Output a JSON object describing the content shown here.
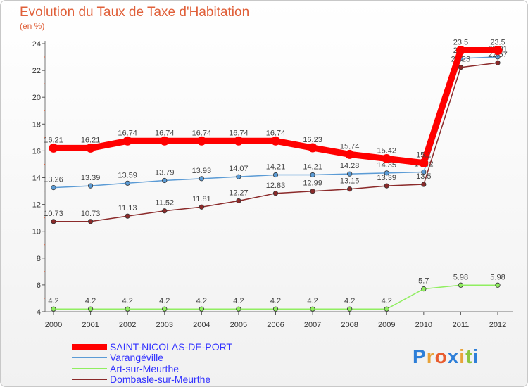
{
  "chart_data": {
    "type": "line",
    "title": "Evolution du Taux de Taxe d'Habitation",
    "ylabel": "(en %)",
    "xlabel": "",
    "ylim": [
      4,
      24
    ],
    "yticks": [
      4,
      6,
      8,
      10,
      12,
      14,
      16,
      18,
      20,
      22,
      24
    ],
    "categories": [
      "2000",
      "2001",
      "2002",
      "2003",
      "2004",
      "2005",
      "2006",
      "2007",
      "2008",
      "2009",
      "2010",
      "2011",
      "2012"
    ],
    "series": [
      {
        "name": "SAINT-NICOLAS-DE-PORT",
        "color": "#ff0000",
        "values": [
          16.21,
          16.21,
          16.74,
          16.74,
          16.74,
          16.74,
          16.74,
          16.23,
          15.74,
          15.42,
          15.1,
          23.5,
          23.5
        ],
        "labels": [
          "16.21",
          "16.21",
          "16.74",
          "16.74",
          "16.74",
          "16.74",
          "16.74",
          "16.23",
          "15.74",
          "15.42",
          "15.1",
          "23.5",
          "23.5"
        ]
      },
      {
        "name": "Varangéville",
        "color": "#5b9bd5",
        "values": [
          13.26,
          13.39,
          13.59,
          13.79,
          13.93,
          14.07,
          14.21,
          14.21,
          14.28,
          14.35,
          14.42,
          22.9,
          23.01
        ],
        "labels": [
          "13.26",
          "13.39",
          "13.59",
          "13.79",
          "13.93",
          "14.07",
          "14.21",
          "14.21",
          "14.28",
          "14.35",
          "14.42",
          "22.9",
          "23.01"
        ]
      },
      {
        "name": "Art-sur-Meurthe",
        "color": "#90ee60",
        "values": [
          4.2,
          4.2,
          4.2,
          4.2,
          4.2,
          4.2,
          4.2,
          4.2,
          4.2,
          4.2,
          5.7,
          5.98,
          5.98
        ],
        "labels": [
          "4.2",
          "4.2",
          "4.2",
          "4.2",
          "4.2",
          "4.2",
          "4.2",
          "4.2",
          "4.2",
          "4.2",
          "5.7",
          "5.98",
          "5.98"
        ]
      },
      {
        "name": "Dombasle-sur-Meurthe",
        "color": "#8b2a2a",
        "values": [
          10.73,
          10.73,
          11.13,
          11.52,
          11.81,
          12.27,
          12.83,
          12.99,
          13.15,
          13.39,
          13.5,
          22.23,
          22.57
        ],
        "labels": [
          "10.73",
          "10.73",
          "11.13",
          "11.52",
          "11.81",
          "12.27",
          "12.83",
          "12.99",
          "13.15",
          "13.39",
          "13.5",
          "22.23",
          "22.57"
        ]
      }
    ],
    "legend": "bottom-left"
  },
  "brand": {
    "letters": [
      "P",
      "r",
      "o",
      "x",
      "i",
      "t",
      "i"
    ],
    "colors": [
      "#2e7fd8",
      "#e8a33a",
      "#e85c2e",
      "#2e7fd8",
      "#e8a33a",
      "#8cc63f",
      "#2e7fd8"
    ]
  }
}
